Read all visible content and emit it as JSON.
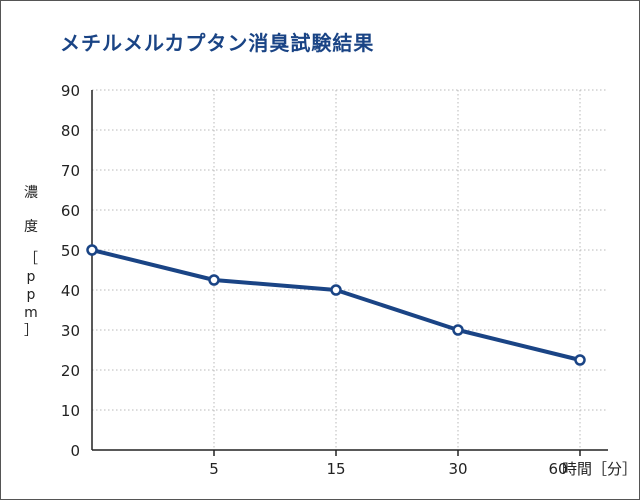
{
  "chart_data": {
    "type": "line",
    "title": "メチルメルカプタン消臭試験結果",
    "ylabel_chars": [
      "濃",
      "度",
      "［",
      "p",
      "p",
      "m",
      "］"
    ],
    "x_unit": "時間［分］",
    "x": [
      0,
      5,
      15,
      30,
      60
    ],
    "x_tick_labels": [
      "",
      "5",
      "15",
      "30",
      "60"
    ],
    "series": [
      {
        "values": [
          50,
          42.5,
          40,
          30,
          22.5
        ]
      }
    ],
    "ylim": [
      0,
      90
    ],
    "y_ticks": [
      0,
      10,
      20,
      30,
      40,
      50,
      60,
      70,
      80,
      90
    ],
    "grid": true,
    "line_color": "#1a4485"
  }
}
